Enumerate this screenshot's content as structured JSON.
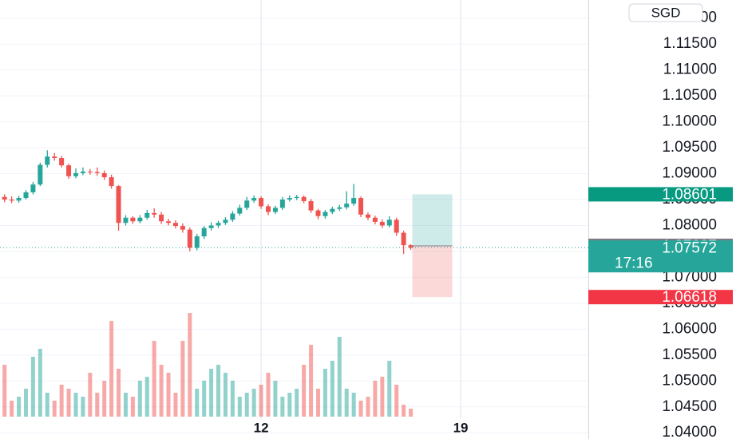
{
  "chart_data": {
    "type": "candlestick",
    "currency": "SGD",
    "x": [
      3,
      3.25,
      3.5,
      3.75,
      4,
      4.25,
      4.5,
      4.75,
      5,
      5.25,
      5.5,
      5.75,
      6,
      6.25,
      6.5,
      6.75,
      7,
      7.25,
      7.5,
      7.75,
      8,
      8.25,
      8.5,
      8.75,
      9,
      9.25,
      9.5,
      9.75,
      10,
      10.25,
      10.5,
      10.75,
      11,
      11.25,
      11.5,
      11.75,
      12,
      12.25,
      12.5,
      12.75,
      13,
      13.25,
      13.5,
      13.75,
      14,
      14.25,
      14.5,
      14.75,
      15,
      15.25,
      15.5,
      15.75,
      16,
      16.25,
      16.5,
      16.75,
      17,
      17.25
    ],
    "open": [
      1.0855,
      1.085,
      1.0848,
      1.0853,
      1.0864,
      1.0879,
      1.0917,
      1.0933,
      1.093,
      1.0916,
      1.0895,
      1.0901,
      1.0904,
      1.0903,
      1.0901,
      1.0893,
      1.0876,
      1.0805,
      1.0815,
      1.0808,
      1.0815,
      1.0824,
      1.0821,
      1.0808,
      1.0805,
      1.0799,
      1.0792,
      1.0757,
      1.0779,
      1.0795,
      1.08,
      1.0805,
      1.0811,
      1.0823,
      1.0834,
      1.0848,
      1.0853,
      1.0837,
      1.0826,
      1.0834,
      1.085,
      1.0853,
      1.0855,
      1.0847,
      1.0829,
      1.0818,
      1.0826,
      1.0832,
      1.0835,
      1.0842,
      1.0853,
      1.0821,
      1.0815,
      1.0807,
      1.08,
      1.0811,
      1.0786,
      1.0762
    ],
    "high": [
      1.086,
      1.0856,
      1.0857,
      1.0868,
      1.0884,
      1.0921,
      1.0945,
      1.094,
      1.0934,
      1.0919,
      1.091,
      1.0912,
      1.0909,
      1.0912,
      1.0906,
      1.0898,
      1.0878,
      1.082,
      1.0818,
      1.082,
      1.083,
      1.0833,
      1.0826,
      1.0813,
      1.081,
      1.0804,
      1.0796,
      1.0784,
      1.0799,
      1.0806,
      1.0809,
      1.0816,
      1.0828,
      1.084,
      1.0855,
      1.0858,
      1.0856,
      1.0841,
      1.0838,
      1.0855,
      1.0858,
      1.0859,
      1.0858,
      1.0851,
      1.0832,
      1.083,
      1.0836,
      1.084,
      1.0866,
      1.088,
      1.0856,
      1.0825,
      1.0819,
      1.0812,
      1.0818,
      1.0815,
      1.079,
      1.0764
    ],
    "low": [
      1.0845,
      1.0843,
      1.0844,
      1.085,
      1.086,
      1.0876,
      1.0912,
      1.0925,
      1.0912,
      1.089,
      1.0891,
      1.0897,
      1.0898,
      1.0896,
      1.0888,
      1.0871,
      1.079,
      1.08,
      1.0803,
      1.0804,
      1.0811,
      1.0815,
      1.0803,
      1.08,
      1.0794,
      1.0786,
      1.075,
      1.0752,
      1.0774,
      1.079,
      1.0795,
      1.0801,
      1.0807,
      1.0819,
      1.083,
      1.0844,
      1.0832,
      1.082,
      1.0822,
      1.083,
      1.0846,
      1.0849,
      1.0843,
      1.0824,
      1.0812,
      1.0813,
      1.0822,
      1.0828,
      1.0831,
      1.0838,
      1.0816,
      1.081,
      1.0802,
      1.0795,
      1.0796,
      1.078,
      1.0745,
      1.0753
    ],
    "close": [
      1.085,
      1.0848,
      1.0853,
      1.0864,
      1.0879,
      1.0917,
      1.0933,
      1.093,
      1.0916,
      1.0895,
      1.0901,
      1.0904,
      1.0903,
      1.0901,
      1.0893,
      1.0876,
      1.0805,
      1.0815,
      1.0808,
      1.0815,
      1.0824,
      1.0821,
      1.0808,
      1.0805,
      1.0799,
      1.0792,
      1.0757,
      1.0779,
      1.0795,
      1.08,
      1.0805,
      1.0811,
      1.0823,
      1.0834,
      1.0848,
      1.0853,
      1.0837,
      1.0826,
      1.0834,
      1.085,
      1.0853,
      1.0855,
      1.0847,
      1.0829,
      1.0818,
      1.0826,
      1.0832,
      1.0835,
      1.0842,
      1.0853,
      1.0821,
      1.0815,
      1.0807,
      1.08,
      1.0811,
      1.0786,
      1.0762,
      1.0757
    ],
    "volume": [
      65,
      20,
      25,
      35,
      75,
      85,
      30,
      20,
      40,
      35,
      30,
      25,
      55,
      30,
      45,
      120,
      60,
      30,
      25,
      45,
      50,
      95,
      65,
      55,
      30,
      95,
      130,
      35,
      45,
      60,
      65,
      55,
      45,
      25,
      30,
      35,
      40,
      55,
      45,
      25,
      30,
      35,
      65,
      90,
      35,
      60,
      70,
      100,
      35,
      30,
      20,
      25,
      45,
      50,
      70,
      40,
      15,
      10
    ],
    "volume_lim": [
      0,
      140
    ],
    "up_color": "#26a69a",
    "down_color": "#ef5350",
    "xlim": [
      2.84,
      23.48
    ],
    "xticks": [
      12,
      19
    ],
    "ylim": [
      1.0388,
      1.1235
    ],
    "yticks": [
      {
        "value": 1.04,
        "label": "1.04000"
      },
      {
        "value": 1.045,
        "label": "1.04500"
      },
      {
        "value": 1.05,
        "label": "1.05000"
      },
      {
        "value": 1.055,
        "label": "1.05500"
      },
      {
        "value": 1.06,
        "label": "1.06000"
      },
      {
        "value": 1.065,
        "label": "1.06500"
      },
      {
        "value": 1.07,
        "label": "1.07000"
      },
      {
        "value": 1.075,
        "label": "1.07500"
      },
      {
        "value": 1.08,
        "label": "1.08000"
      },
      {
        "value": 1.085,
        "label": "1.08500"
      },
      {
        "value": 1.09,
        "label": "1.09000"
      },
      {
        "value": 1.095,
        "label": "1.09500"
      },
      {
        "value": 1.1,
        "label": "1.10000"
      },
      {
        "value": 1.105,
        "label": "1.10500"
      },
      {
        "value": 1.11,
        "label": "1.11000"
      },
      {
        "value": 1.115,
        "label": "1.11500"
      },
      {
        "value": 1.12,
        "label": "1.12000"
      }
    ],
    "grid": true,
    "position": {
      "take_profit": 1.08601,
      "entry": 1.07607,
      "stop_loss": 1.06618
    },
    "last_price": {
      "value": 1.07572,
      "countdown": "17:16"
    }
  }
}
